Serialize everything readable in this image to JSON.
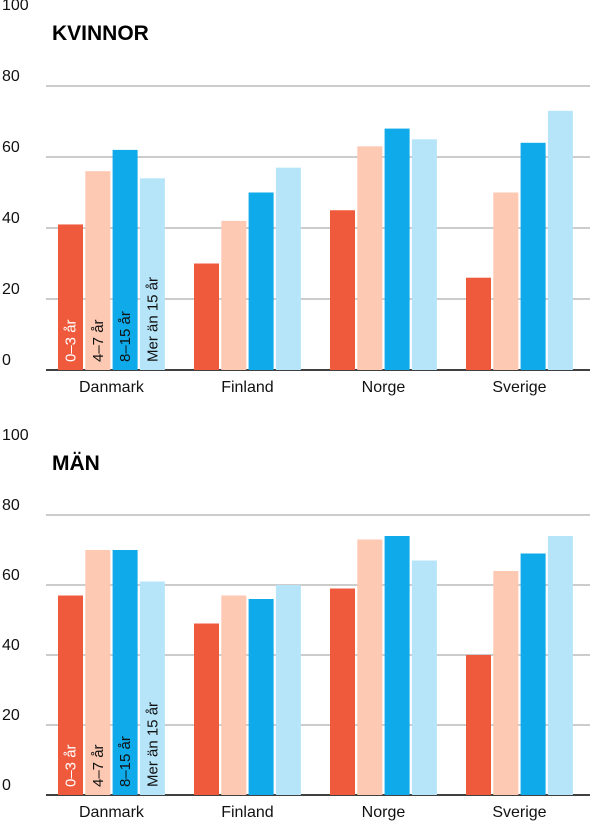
{
  "chart_data": [
    {
      "type": "bar",
      "title": "KVINNOR",
      "categories": [
        "Danmark",
        "Finland",
        "Norge",
        "Sverige"
      ],
      "ylim": [
        0,
        100
      ],
      "yticks": [
        0,
        20,
        40,
        60,
        80,
        100
      ],
      "grid": true,
      "legend": "labels inside first group of bars",
      "series": [
        {
          "name": "0–3 år",
          "color": "#f05a3c",
          "label_color": "#ffffff",
          "values": [
            41,
            30,
            45,
            26
          ]
        },
        {
          "name": "4–7 år",
          "color": "#fdc9b2",
          "label_color": "#111111",
          "values": [
            56,
            42,
            63,
            50
          ]
        },
        {
          "name": "8–15 år",
          "color": "#0eaaea",
          "label_color": "#111111",
          "values": [
            62,
            50,
            68,
            64
          ]
        },
        {
          "name": "Mer än 15 år",
          "color": "#b6e5fa",
          "label_color": "#111111",
          "values": [
            54,
            57,
            65,
            73
          ]
        }
      ]
    },
    {
      "type": "bar",
      "title": "MÄN",
      "categories": [
        "Danmark",
        "Finland",
        "Norge",
        "Sverige"
      ],
      "ylim": [
        0,
        100
      ],
      "yticks": [
        0,
        20,
        40,
        60,
        80,
        100
      ],
      "grid": true,
      "legend": "labels inside first group of bars",
      "series": [
        {
          "name": "0–3 år",
          "color": "#f05a3c",
          "label_color": "#ffffff",
          "values": [
            57,
            49,
            59,
            40
          ]
        },
        {
          "name": "4–7 år",
          "color": "#fdc9b2",
          "label_color": "#111111",
          "values": [
            70,
            57,
            73,
            64
          ]
        },
        {
          "name": "8–15 år",
          "color": "#0eaaea",
          "label_color": "#111111",
          "values": [
            70,
            56,
            74,
            69
          ]
        },
        {
          "name": "Mer än 15 år",
          "color": "#b6e5fa",
          "label_color": "#111111",
          "values": [
            61,
            60,
            67,
            74
          ]
        }
      ]
    }
  ]
}
